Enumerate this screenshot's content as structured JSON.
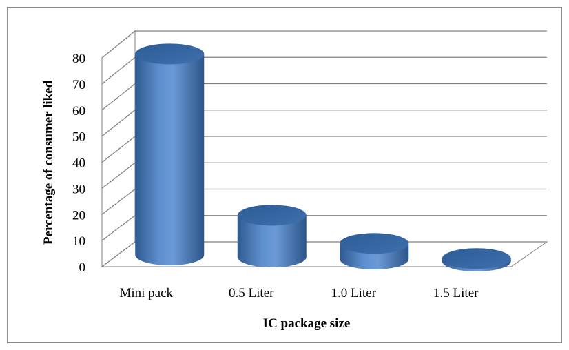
{
  "chart_data": {
    "type": "bar",
    "style": "3d-cylinder",
    "categories": [
      "Mini pack",
      "0.5 Liter",
      "1.0 Liter",
      "1.5 Liter"
    ],
    "series": [
      {
        "values": [
          77,
          16,
          6,
          1
        ]
      }
    ],
    "title": "",
    "xlabel": "IC package size",
    "ylabel": "Percentage of consumer liked",
    "ylim": [
      0,
      80
    ],
    "yticks": [
      0,
      10,
      20,
      30,
      40,
      50,
      60,
      70,
      80
    ],
    "grid": true,
    "legend": "none",
    "colors": {
      "bar_body": "#4f81bd",
      "bar_top": "#3b6aa3",
      "grid": "#808080"
    }
  }
}
